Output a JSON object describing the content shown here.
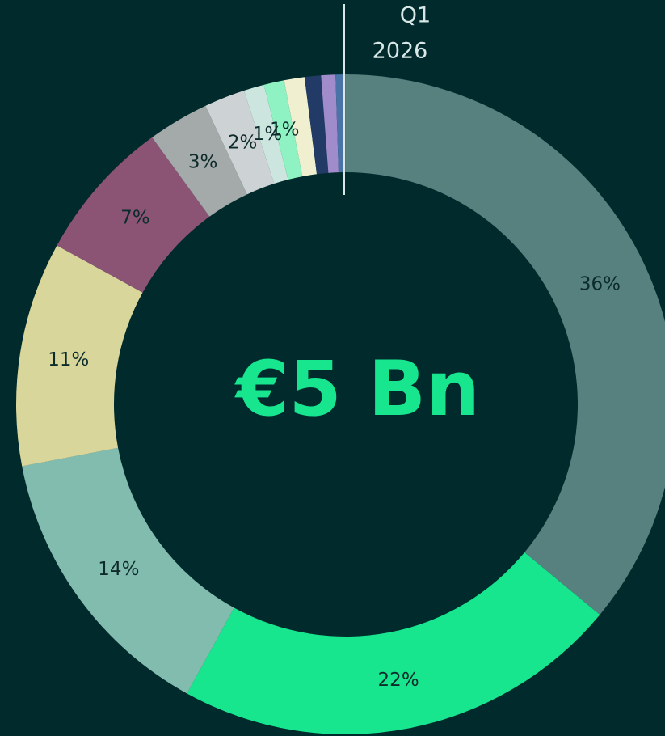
{
  "chart_data": {
    "type": "donut",
    "period": "Q1",
    "year": "2026",
    "center_label": "€5 Bn",
    "values": [
      36,
      22,
      14,
      11,
      7,
      3,
      2,
      1,
      1,
      1,
      0.8,
      0.7,
      0.5
    ],
    "value_labels": [
      "36%",
      "22%",
      "14%",
      "11%",
      "7%",
      "3%",
      "2%",
      "1%",
      "1%",
      null,
      null,
      null,
      null
    ],
    "colors": [
      "#56817f",
      "#17e68f",
      "#82bcae",
      "#d8d69b",
      "#8b5474",
      "#a4aaa9",
      "#cdd3d4",
      "#cde5df",
      "#8ef2c2",
      "#f0efd0",
      "#213a66",
      "#a08bcb",
      "#4a73a8"
    ]
  }
}
